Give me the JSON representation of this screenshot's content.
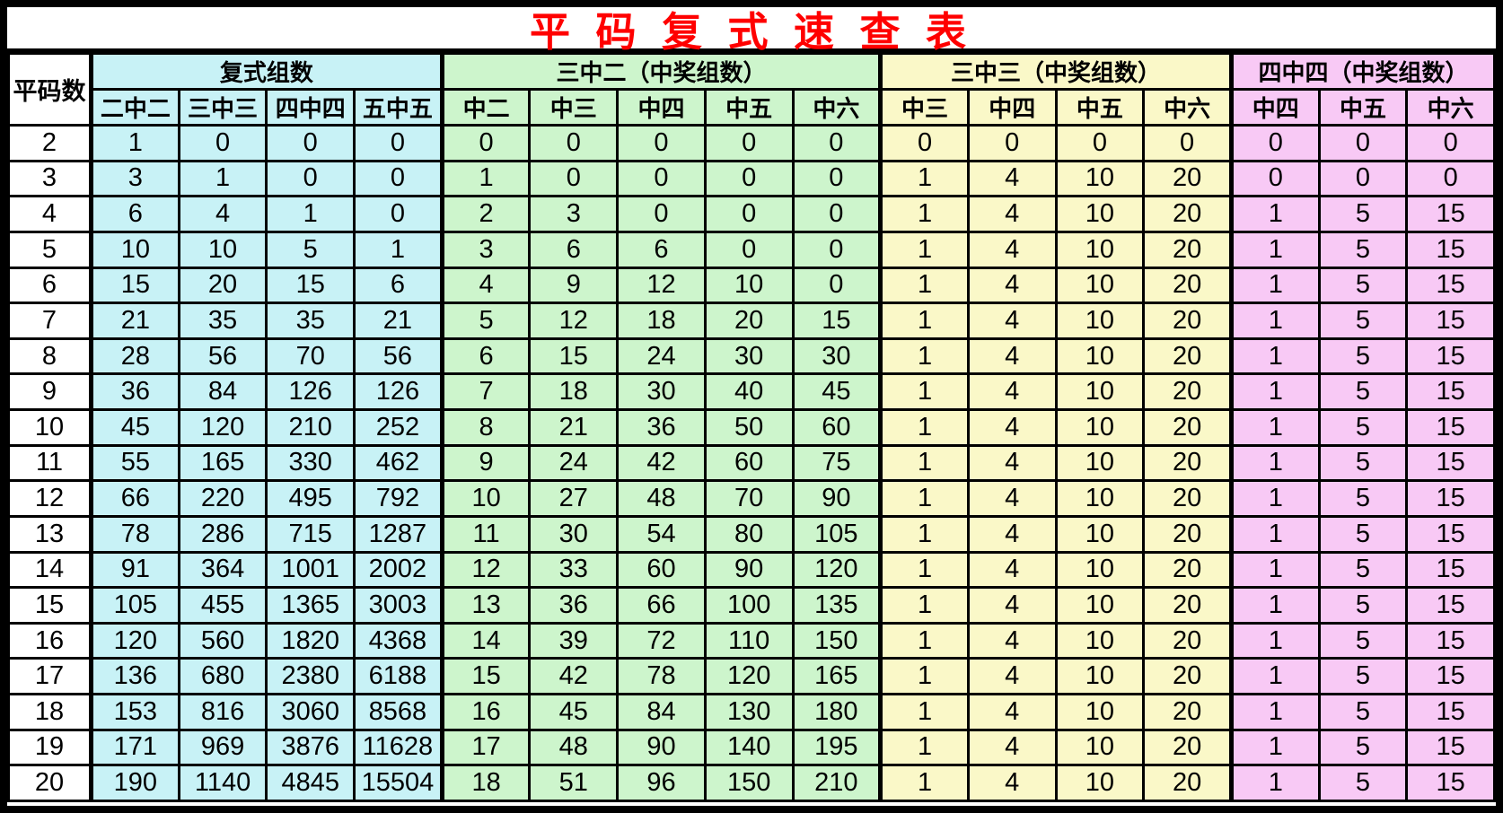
{
  "colors": {
    "title_red": "#FF0000",
    "border_black": "#000000",
    "white": "#FFFFFF",
    "cyan": "#C8F2F6",
    "green": "#CDF5CC",
    "yellow": "#FAF8C8",
    "pink": "#F8C9F5"
  },
  "chart_data": {
    "type": "table",
    "title": "平 码 复 式 速 查 表",
    "row_header_label": "平码数",
    "column_groups": [
      {
        "label": "复式组数",
        "color_key": "cyan",
        "columns": [
          "二中二",
          "三中三",
          "四中四",
          "五中五"
        ]
      },
      {
        "label": "三中二（中奖组数）",
        "color_key": "green",
        "columns": [
          "中二",
          "中三",
          "中四",
          "中五",
          "中六"
        ]
      },
      {
        "label": "三中三（中奖组数）",
        "color_key": "yellow",
        "columns": [
          "中三",
          "中四",
          "中五",
          "中六"
        ]
      },
      {
        "label": "四中四（中奖组数）",
        "color_key": "pink",
        "columns": [
          "中四",
          "中五",
          "中六"
        ]
      }
    ],
    "rows": [
      [
        2,
        1,
        0,
        0,
        0,
        0,
        0,
        0,
        0,
        0,
        0,
        0,
        0,
        0,
        0,
        0,
        0
      ],
      [
        3,
        3,
        1,
        0,
        0,
        1,
        0,
        0,
        0,
        0,
        1,
        4,
        10,
        20,
        0,
        0,
        0
      ],
      [
        4,
        6,
        4,
        1,
        0,
        2,
        3,
        0,
        0,
        0,
        1,
        4,
        10,
        20,
        1,
        5,
        15
      ],
      [
        5,
        10,
        10,
        5,
        1,
        3,
        6,
        6,
        0,
        0,
        1,
        4,
        10,
        20,
        1,
        5,
        15
      ],
      [
        6,
        15,
        20,
        15,
        6,
        4,
        9,
        12,
        10,
        0,
        1,
        4,
        10,
        20,
        1,
        5,
        15
      ],
      [
        7,
        21,
        35,
        35,
        21,
        5,
        12,
        18,
        20,
        15,
        1,
        4,
        10,
        20,
        1,
        5,
        15
      ],
      [
        8,
        28,
        56,
        70,
        56,
        6,
        15,
        24,
        30,
        30,
        1,
        4,
        10,
        20,
        1,
        5,
        15
      ],
      [
        9,
        36,
        84,
        126,
        126,
        7,
        18,
        30,
        40,
        45,
        1,
        4,
        10,
        20,
        1,
        5,
        15
      ],
      [
        10,
        45,
        120,
        210,
        252,
        8,
        21,
        36,
        50,
        60,
        1,
        4,
        10,
        20,
        1,
        5,
        15
      ],
      [
        11,
        55,
        165,
        330,
        462,
        9,
        24,
        42,
        60,
        75,
        1,
        4,
        10,
        20,
        1,
        5,
        15
      ],
      [
        12,
        66,
        220,
        495,
        792,
        10,
        27,
        48,
        70,
        90,
        1,
        4,
        10,
        20,
        1,
        5,
        15
      ],
      [
        13,
        78,
        286,
        715,
        1287,
        11,
        30,
        54,
        80,
        105,
        1,
        4,
        10,
        20,
        1,
        5,
        15
      ],
      [
        14,
        91,
        364,
        1001,
        2002,
        12,
        33,
        60,
        90,
        120,
        1,
        4,
        10,
        20,
        1,
        5,
        15
      ],
      [
        15,
        105,
        455,
        1365,
        3003,
        13,
        36,
        66,
        100,
        135,
        1,
        4,
        10,
        20,
        1,
        5,
        15
      ],
      [
        16,
        120,
        560,
        1820,
        4368,
        14,
        39,
        72,
        110,
        150,
        1,
        4,
        10,
        20,
        1,
        5,
        15
      ],
      [
        17,
        136,
        680,
        2380,
        6188,
        15,
        42,
        78,
        120,
        165,
        1,
        4,
        10,
        20,
        1,
        5,
        15
      ],
      [
        18,
        153,
        816,
        3060,
        8568,
        16,
        45,
        84,
        130,
        180,
        1,
        4,
        10,
        20,
        1,
        5,
        15
      ],
      [
        19,
        171,
        969,
        3876,
        11628,
        17,
        48,
        90,
        140,
        195,
        1,
        4,
        10,
        20,
        1,
        5,
        15
      ],
      [
        20,
        190,
        1140,
        4845,
        15504,
        18,
        51,
        96,
        150,
        210,
        1,
        4,
        10,
        20,
        1,
        5,
        15
      ]
    ]
  }
}
